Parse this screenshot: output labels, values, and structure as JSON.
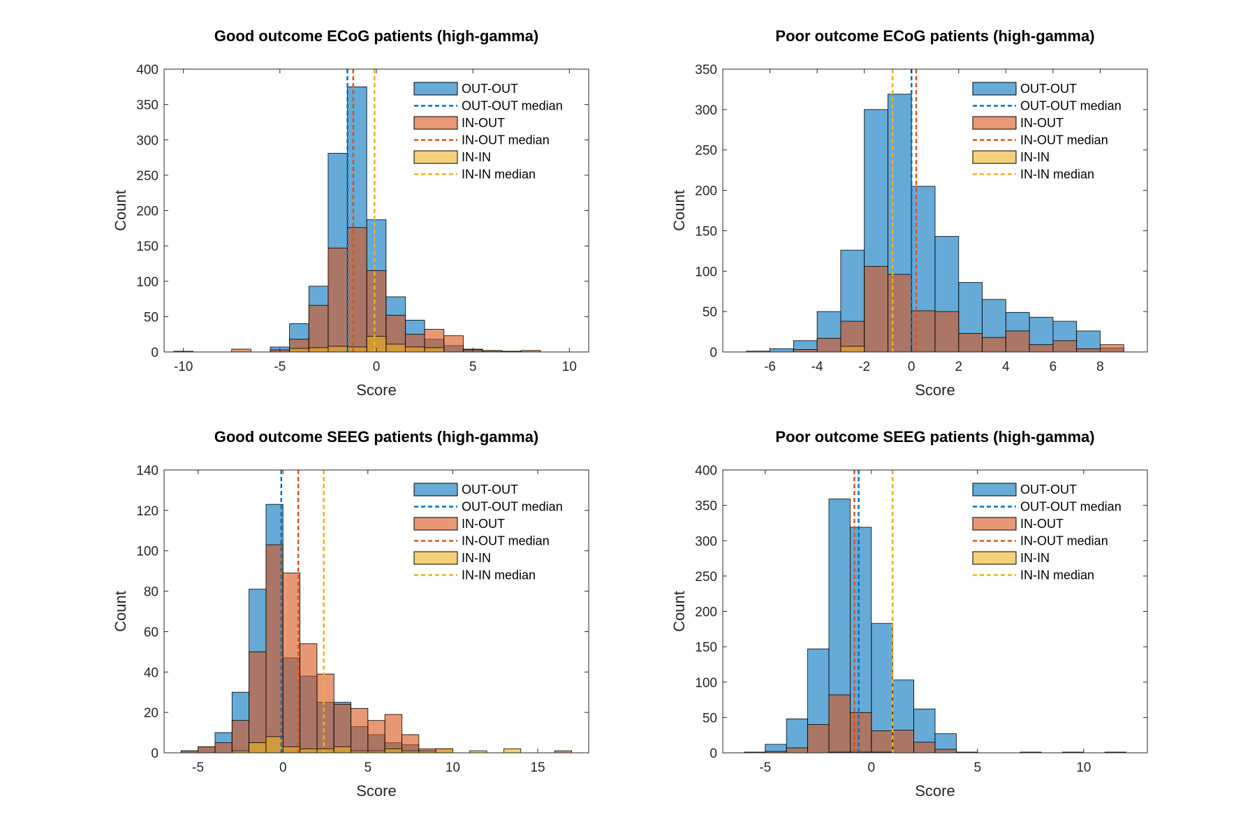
{
  "chart_data": [
    {
      "type": "bar",
      "title": "Good outcome ECoG patients (high-gamma)",
      "xlabel": "Score",
      "ylabel": "Count",
      "xlim": [
        -11,
        11
      ],
      "ylim": [
        0,
        400
      ],
      "xticks": [
        -10,
        -5,
        0,
        5,
        10
      ],
      "yticks": [
        0,
        50,
        100,
        150,
        200,
        250,
        300,
        350,
        400
      ],
      "bin_edges": [
        -10.5,
        -9.5,
        -8.5,
        -7.5,
        -6.5,
        -5.5,
        -4.5,
        -3.5,
        -2.5,
        -1.5,
        -0.5,
        0.5,
        1.5,
        2.5,
        3.5,
        4.5,
        5.5,
        6.5,
        7.5,
        8.5,
        9.5
      ],
      "series": [
        {
          "name": "OUT-OUT",
          "color": "#0072BD",
          "values": [
            1,
            0,
            0,
            0,
            0,
            7,
            40,
            93,
            281,
            375,
            187,
            78,
            45,
            18,
            9,
            4,
            2,
            1,
            0,
            0
          ],
          "median": -1.5
        },
        {
          "name": "IN-OUT",
          "color": "#D95319",
          "values": [
            0,
            0,
            0,
            4,
            0,
            3,
            18,
            66,
            147,
            176,
            115,
            52,
            25,
            32,
            23,
            3,
            1,
            1,
            2,
            0
          ],
          "median": -1.2
        },
        {
          "name": "IN-IN",
          "color": "#EDB120",
          "values": [
            0,
            0,
            0,
            0,
            0,
            0,
            5,
            6,
            8,
            7,
            22,
            11,
            7,
            6,
            0,
            0,
            2,
            1,
            2,
            0
          ],
          "median": -0.1
        }
      ],
      "legend": [
        "OUT-OUT",
        "OUT-OUT median",
        "IN-OUT",
        "IN-OUT median",
        "IN-IN",
        "IN-IN median"
      ],
      "legend_position": "top-right"
    },
    {
      "type": "bar",
      "title": "Poor outcome ECoG patients (high-gamma)",
      "xlabel": "Score",
      "ylabel": "Count",
      "xlim": [
        -8,
        10
      ],
      "ylim": [
        0,
        350
      ],
      "xticks": [
        -6,
        -4,
        -2,
        0,
        2,
        4,
        6,
        8
      ],
      "yticks": [
        0,
        50,
        100,
        150,
        200,
        250,
        300,
        350
      ],
      "bin_edges": [
        -7,
        -6,
        -5,
        -4,
        -3,
        -2,
        -1,
        0,
        1,
        2,
        3,
        4,
        5,
        6,
        7,
        8,
        9
      ],
      "series": [
        {
          "name": "OUT-OUT",
          "color": "#0072BD",
          "values": [
            1,
            4,
            14,
            50,
            126,
            300,
            319,
            205,
            143,
            86,
            65,
            49,
            43,
            38,
            26,
            5
          ],
          "median": 0.0
        },
        {
          "name": "IN-OUT",
          "color": "#D95319",
          "values": [
            0,
            0,
            3,
            17,
            38,
            106,
            96,
            51,
            50,
            23,
            18,
            26,
            9,
            14,
            4,
            9
          ],
          "median": 0.2
        },
        {
          "name": "IN-IN",
          "color": "#EDB120",
          "values": [
            0,
            0,
            0,
            0,
            7,
            0,
            0,
            0,
            0,
            0,
            0,
            0,
            0,
            0,
            0,
            0
          ],
          "median": -0.8
        }
      ],
      "legend": [
        "OUT-OUT",
        "OUT-OUT median",
        "IN-OUT",
        "IN-OUT median",
        "IN-IN",
        "IN-IN median"
      ],
      "legend_position": "top-right"
    },
    {
      "type": "bar",
      "title": "Good outcome SEEG patients (high-gamma)",
      "xlabel": "Score",
      "ylabel": "Count",
      "xlim": [
        -7,
        18
      ],
      "ylim": [
        0,
        140
      ],
      "xticks": [
        -5,
        0,
        5,
        10,
        15
      ],
      "yticks": [
        0,
        20,
        40,
        60,
        80,
        100,
        120,
        140
      ],
      "bin_edges": [
        -6,
        -5,
        -4,
        -3,
        -2,
        -1,
        0,
        1,
        2,
        3,
        4,
        5,
        6,
        7,
        8,
        9,
        10,
        11,
        12,
        13,
        14,
        15,
        16,
        17
      ],
      "series": [
        {
          "name": "OUT-OUT",
          "color": "#0072BD",
          "values": [
            1,
            3,
            10,
            30,
            81,
            123,
            47,
            38,
            25,
            25,
            13,
            9,
            5,
            4,
            1,
            0,
            0,
            0,
            0,
            0,
            0,
            0,
            0
          ],
          "median": -0.1
        },
        {
          "name": "IN-OUT",
          "color": "#D95319",
          "values": [
            1,
            3,
            5,
            16,
            50,
            103,
            89,
            54,
            39,
            24,
            22,
            16,
            19,
            9,
            2,
            2,
            0,
            0,
            0,
            0,
            0,
            0,
            1
          ],
          "median": 0.9
        },
        {
          "name": "IN-IN",
          "color": "#EDB120",
          "values": [
            0,
            0,
            0,
            1,
            5,
            8,
            3,
            2,
            2,
            3,
            1,
            1,
            2,
            1,
            1,
            2,
            0,
            1,
            0,
            2,
            0,
            0,
            0
          ],
          "median": 2.4
        }
      ],
      "legend": [
        "OUT-OUT",
        "OUT-OUT median",
        "IN-OUT",
        "IN-OUT median",
        "IN-IN",
        "IN-IN median"
      ],
      "legend_position": "top-right"
    },
    {
      "type": "bar",
      "title": "Poor outcome SEEG patients (high-gamma)",
      "xlabel": "Score",
      "ylabel": "Count",
      "xlim": [
        -7,
        13
      ],
      "ylim": [
        0,
        400
      ],
      "xticks": [
        -5,
        0,
        5,
        10
      ],
      "yticks": [
        0,
        50,
        100,
        150,
        200,
        250,
        300,
        350,
        400
      ],
      "bin_edges": [
        -6,
        -5,
        -4,
        -3,
        -2,
        -1,
        0,
        1,
        2,
        3,
        4,
        5,
        6,
        7,
        8,
        9,
        10,
        11,
        12
      ],
      "series": [
        {
          "name": "OUT-OUT",
          "color": "#0072BD",
          "values": [
            1,
            12,
            48,
            147,
            359,
            319,
            183,
            103,
            62,
            27,
            1,
            0,
            0,
            1,
            0,
            1,
            0,
            1
          ],
          "median": -0.6
        },
        {
          "name": "IN-OUT",
          "color": "#D95319",
          "values": [
            0,
            2,
            7,
            40,
            82,
            57,
            31,
            32,
            15,
            5,
            0,
            0,
            0,
            0,
            0,
            0,
            0,
            0
          ],
          "median": -0.8
        },
        {
          "name": "IN-IN",
          "color": "#EDB120",
          "values": [
            0,
            0,
            0,
            0,
            1,
            1,
            1,
            0,
            0,
            0,
            0,
            0,
            0,
            0,
            0,
            0,
            0,
            0
          ],
          "median": 1.0
        }
      ],
      "legend": [
        "OUT-OUT",
        "OUT-OUT median",
        "IN-OUT",
        "IN-OUT median",
        "IN-IN",
        "IN-IN median"
      ],
      "legend_position": "top-right"
    }
  ]
}
